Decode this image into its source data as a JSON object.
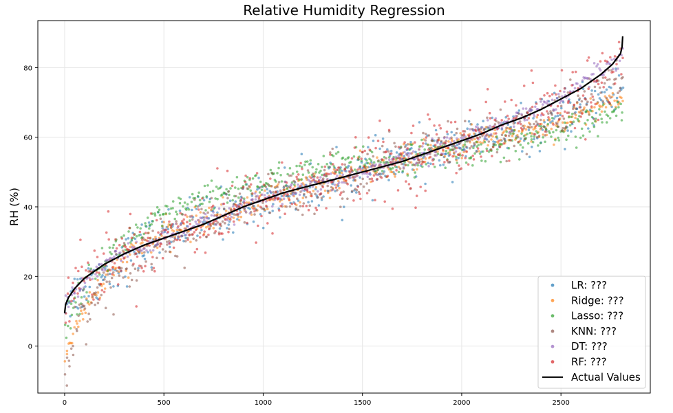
{
  "chart_data": {
    "type": "scatter",
    "title": "Relative Humidity Regression",
    "xlabel": "",
    "ylabel": "RH (%)",
    "xlim": [
      -135,
      2950
    ],
    "ylim": [
      -13.5,
      93.5
    ],
    "x_ticks": [
      0,
      500,
      1000,
      1500,
      2000,
      2500
    ],
    "y_ticks": [
      0,
      20,
      40,
      60,
      80
    ],
    "grid": true,
    "legend_position": "lower-right",
    "n_points": 2812,
    "actual_values": {
      "name": "Actual Values",
      "color": "#000000",
      "points": [
        [
          0,
          9.5
        ],
        [
          5,
          12
        ],
        [
          20,
          14
        ],
        [
          50,
          16.5
        ],
        [
          100,
          19.5
        ],
        [
          200,
          23.5
        ],
        [
          300,
          26.5
        ],
        [
          400,
          29
        ],
        [
          500,
          31
        ],
        [
          600,
          33
        ],
        [
          700,
          35
        ],
        [
          800,
          37.5
        ],
        [
          900,
          40
        ],
        [
          1000,
          42
        ],
        [
          1100,
          44
        ],
        [
          1200,
          45.5
        ],
        [
          1300,
          47
        ],
        [
          1400,
          48.5
        ],
        [
          1500,
          50
        ],
        [
          1600,
          51.5
        ],
        [
          1700,
          53
        ],
        [
          1800,
          55
        ],
        [
          1900,
          57
        ],
        [
          2000,
          59
        ],
        [
          2100,
          61
        ],
        [
          2200,
          63.5
        ],
        [
          2300,
          65.5
        ],
        [
          2400,
          68
        ],
        [
          2500,
          71
        ],
        [
          2600,
          74
        ],
        [
          2700,
          78
        ],
        [
          2760,
          81
        ],
        [
          2800,
          84
        ],
        [
          2808,
          86
        ],
        [
          2811,
          89
        ]
      ]
    },
    "series": [
      {
        "name": "LR: ???",
        "color": "#1f77b4",
        "trend": [
          [
            0,
            13
          ],
          [
            500,
            33
          ],
          [
            1000,
            42
          ],
          [
            1500,
            50
          ],
          [
            2000,
            58
          ],
          [
            2500,
            65
          ],
          [
            2811,
            74
          ]
        ],
        "spread": 3.5
      },
      {
        "name": "Ridge: ???",
        "color": "#ff7f0e",
        "trend": [
          [
            0,
            -5
          ],
          [
            30,
            2
          ],
          [
            80,
            9
          ],
          [
            150,
            15
          ],
          [
            250,
            22
          ],
          [
            400,
            29
          ],
          [
            600,
            34
          ],
          [
            1000,
            42
          ],
          [
            1500,
            50
          ],
          [
            2000,
            58
          ],
          [
            2500,
            64
          ],
          [
            2811,
            72
          ]
        ],
        "spread": 2.0
      },
      {
        "name": "Lasso: ???",
        "color": "#2ca02c",
        "trend": [
          [
            0,
            5
          ],
          [
            50,
            11
          ],
          [
            100,
            17
          ],
          [
            200,
            25
          ],
          [
            350,
            32
          ],
          [
            500,
            37
          ],
          [
            800,
            44
          ],
          [
            1000,
            47
          ],
          [
            1300,
            51
          ],
          [
            1600,
            53
          ],
          [
            2000,
            56
          ],
          [
            2500,
            61
          ],
          [
            2811,
            68
          ]
        ],
        "spread": 2.2
      },
      {
        "name": "KNN: ???",
        "color": "#8c564b",
        "trend": [
          [
            0,
            -7
          ],
          [
            30,
            1
          ],
          [
            80,
            8
          ],
          [
            150,
            14
          ],
          [
            250,
            21
          ],
          [
            400,
            28
          ],
          [
            700,
            35
          ],
          [
            1000,
            42
          ],
          [
            1500,
            50
          ],
          [
            2000,
            58
          ],
          [
            2500,
            66
          ],
          [
            2811,
            78
          ]
        ],
        "spread": 3.5
      },
      {
        "name": "DT: ???",
        "color": "#9467bd",
        "trend": [
          [
            0,
            12
          ],
          [
            200,
            24
          ],
          [
            500,
            31
          ],
          [
            1000,
            42
          ],
          [
            1500,
            50
          ],
          [
            2000,
            59
          ],
          [
            2500,
            71
          ],
          [
            2811,
            84
          ]
        ],
        "spread": 1.3
      },
      {
        "name": "RF: ???",
        "color": "#d62728",
        "trend": [
          [
            0,
            15
          ],
          [
            200,
            24
          ],
          [
            500,
            32
          ],
          [
            1000,
            42
          ],
          [
            1500,
            50
          ],
          [
            2000,
            59
          ],
          [
            2500,
            69
          ],
          [
            2811,
            80
          ]
        ],
        "spread": 5.0
      }
    ],
    "legend_entries": [
      "LR: ???",
      "Ridge: ???",
      "Lasso: ???",
      "KNN: ???",
      "DT: ???",
      "RF: ???",
      "Actual Values"
    ]
  }
}
